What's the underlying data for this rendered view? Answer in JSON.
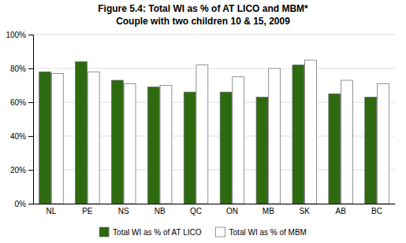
{
  "chart_data": {
    "type": "bar",
    "title": "Figure 5.4: Total WI as % of AT LICO and MBM*",
    "subtitle": "Couple with two children 10 & 15, 2009",
    "categories": [
      "NL",
      "PE",
      "NS",
      "NB",
      "QC",
      "ON",
      "MB",
      "SK",
      "AB",
      "BC"
    ],
    "series": [
      {
        "name": "Total WI as % of AT LICO",
        "color": "#2d6a10",
        "values": [
          78,
          84,
          73,
          69,
          66,
          66,
          63,
          82,
          65,
          63
        ]
      },
      {
        "name": "Total WI as % of MBM",
        "color": "#ffffff",
        "values": [
          77,
          78,
          71,
          70,
          82,
          75,
          80,
          85,
          73,
          71
        ]
      }
    ],
    "ylim": [
      0,
      100
    ],
    "yticks": [
      {
        "value": 0,
        "label": "0%"
      },
      {
        "value": 20,
        "label": "20%"
      },
      {
        "value": 40,
        "label": "40%"
      },
      {
        "value": 60,
        "label": "60%"
      },
      {
        "value": 80,
        "label": "80%"
      },
      {
        "value": 100,
        "label": "100%"
      }
    ],
    "grid": true,
    "legend": "bottom"
  }
}
